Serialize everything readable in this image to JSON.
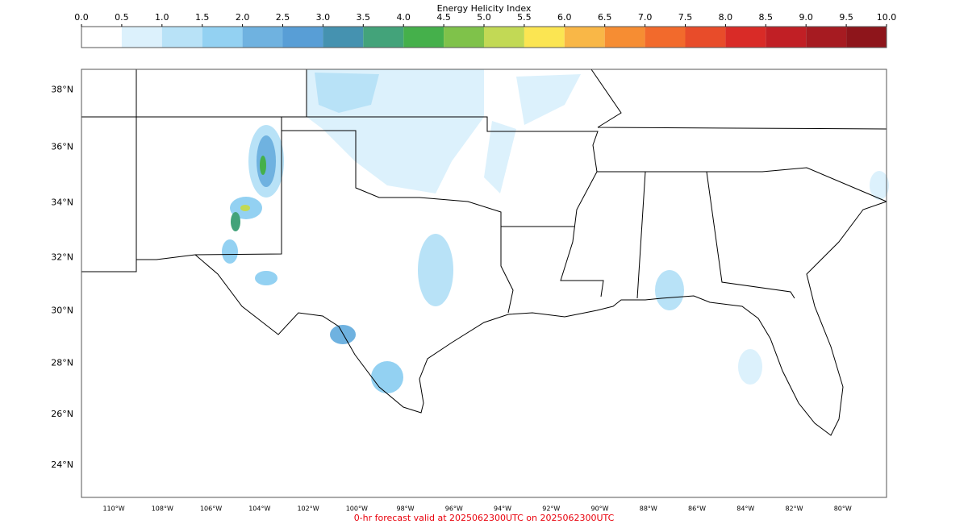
{
  "colorbar": {
    "title": "Energy Helicity Index",
    "ticks": [
      {
        "value": 0,
        "label": "0.0"
      },
      {
        "value": 0.5,
        "label": "0.5"
      },
      {
        "value": 1,
        "label": "1.0"
      },
      {
        "value": 1.5,
        "label": "1.5"
      },
      {
        "value": 2,
        "label": "2.0"
      },
      {
        "value": 2.5,
        "label": "2.5"
      },
      {
        "value": 3,
        "label": "3.0"
      },
      {
        "value": 3.5,
        "label": "3.5"
      },
      {
        "value": 4,
        "label": "4.0"
      },
      {
        "value": 4.5,
        "label": "4.5"
      },
      {
        "value": 5,
        "label": "5.0"
      },
      {
        "value": 5.5,
        "label": "5.5"
      },
      {
        "value": 6,
        "label": "6.0"
      },
      {
        "value": 6.5,
        "label": "6.5"
      },
      {
        "value": 7,
        "label": "7.0"
      },
      {
        "value": 7.5,
        "label": "7.5"
      },
      {
        "value": 8,
        "label": "8.0"
      },
      {
        "value": 8.5,
        "label": "8.5"
      },
      {
        "value": 9,
        "label": "9.0"
      },
      {
        "value": 9.5,
        "label": "9.5"
      },
      {
        "value": 10,
        "label": "10.0"
      }
    ],
    "colors": [
      "#ffffff",
      "#dcf1fc",
      "#b8e2f7",
      "#93d1f2",
      "#6fb2e0",
      "#589ed6",
      "#4592b0",
      "#43a37a",
      "#45b04b",
      "#7fc24a",
      "#c2d955",
      "#fbe552",
      "#f9b747",
      "#f68d33",
      "#f26a2c",
      "#e84c2a",
      "#d92b27",
      "#c11f25",
      "#a61b21",
      "#8e151b"
    ]
  },
  "map": {
    "lat_labels": [
      {
        "value": 38,
        "label": "38°N"
      },
      {
        "value": 36,
        "label": "36°N"
      },
      {
        "value": 34,
        "label": "34°N"
      },
      {
        "value": 32,
        "label": "32°N"
      },
      {
        "value": 30,
        "label": "30°N"
      },
      {
        "value": 28,
        "label": "28°N"
      },
      {
        "value": 26,
        "label": "26°N"
      },
      {
        "value": 24,
        "label": "24°N"
      }
    ],
    "lon_labels": [
      {
        "value": -110,
        "label": "110°W"
      },
      {
        "value": -108,
        "label": "108°W"
      },
      {
        "value": -106,
        "label": "106°W"
      },
      {
        "value": -104,
        "label": "104°W"
      },
      {
        "value": -102,
        "label": "102°W"
      },
      {
        "value": -100,
        "label": "100°W"
      },
      {
        "value": -98,
        "label": "98°W"
      },
      {
        "value": -96,
        "label": "96°W"
      },
      {
        "value": -94,
        "label": "94°W"
      },
      {
        "value": -92,
        "label": "92°W"
      },
      {
        "value": -90,
        "label": "90°W"
      },
      {
        "value": -88,
        "label": "88°W"
      },
      {
        "value": -86,
        "label": "86°W"
      },
      {
        "value": -84,
        "label": "84°W"
      },
      {
        "value": -82,
        "label": "82°W"
      },
      {
        "value": -80,
        "label": "80°W"
      }
    ],
    "footer": "0-hr forecast valid at 2025062300UTC on 2025062300UTC"
  }
}
